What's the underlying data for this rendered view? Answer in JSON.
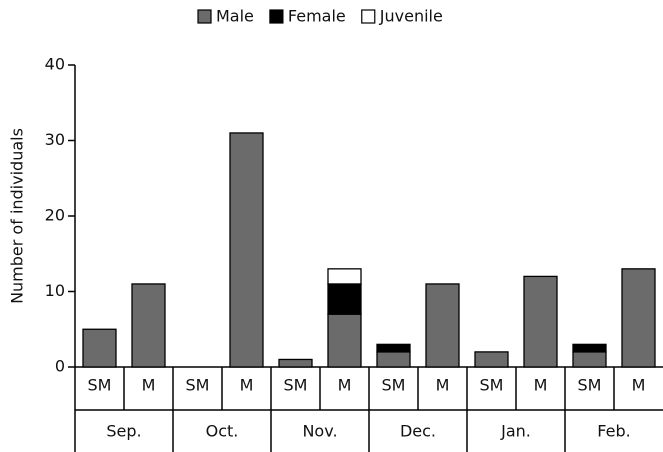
{
  "chart_data": {
    "type": "stacked-bar",
    "ylabel": "Number of individuals",
    "categories": [
      "SM",
      "M",
      "SM",
      "M",
      "SM",
      "M",
      "SM",
      "M",
      "SM",
      "M",
      "SM",
      "M"
    ],
    "groups": [
      "Sep.",
      "Oct.",
      "Nov.",
      "Dec.",
      "Jan.",
      "Feb."
    ],
    "series": [
      {
        "name": "Male",
        "color": "#6b6b6b",
        "values": [
          5,
          11,
          0,
          31,
          1,
          7,
          2,
          11,
          2,
          12,
          2,
          13
        ]
      },
      {
        "name": "Female",
        "color": "#000000",
        "values": [
          0,
          0,
          0,
          0,
          0,
          4,
          1,
          0,
          0,
          0,
          1,
          0
        ]
      },
      {
        "name": "Juvenile",
        "color": "#ffffff",
        "values": [
          0,
          0,
          0,
          0,
          0,
          2,
          0,
          0,
          0,
          0,
          0,
          0
        ]
      }
    ],
    "ylim": [
      0,
      40
    ],
    "yticks": [
      0,
      10,
      20,
      30,
      40
    ],
    "legend": "top"
  }
}
